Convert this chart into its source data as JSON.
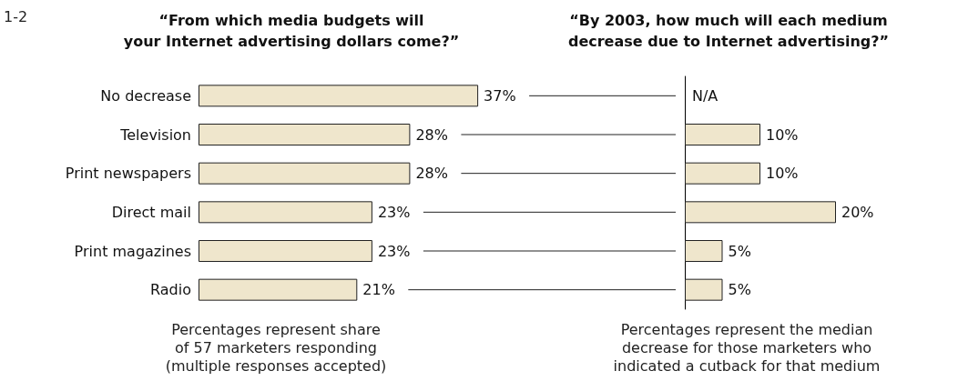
{
  "chart_data": [
    {
      "type": "bar",
      "orientation": "horizontal",
      "title": "“From which media budgets will\nyour Internet advertising dollars come?”",
      "categories": [
        "No decrease",
        "Television",
        "Print newspapers",
        "Direct mail",
        "Print magazines",
        "Radio"
      ],
      "values": [
        37,
        28,
        28,
        23,
        23,
        21
      ],
      "color": "#efe6cc",
      "value_labels": [
        "37%",
        "28%",
        "28%",
        "23%",
        "23%",
        "21%"
      ],
      "tick_labels": "y",
      "annotations": [
        "1-2",
        "Percentages represent share\nof 57 marketers responding\n(multiple responses accepted)"
      ]
    },
    {
      "type": "bar",
      "orientation": "horizontal",
      "title": "“By 2003, how much will each medium\ndecrease due to Internet advertising?”",
      "categories": [
        null,
        null,
        null,
        null,
        null,
        null
      ],
      "values": [
        null,
        10,
        10,
        20,
        5,
        5
      ],
      "color": "#efe6cc",
      "value_labels": [
        "N/A",
        "10%",
        "10%",
        "20%",
        "5%",
        "5%"
      ],
      "tick_labels": false,
      "annotations": [
        "Percentages represent the median\ndecrease for those marketers who\nindicated a cutback for that medium"
      ]
    }
  ]
}
